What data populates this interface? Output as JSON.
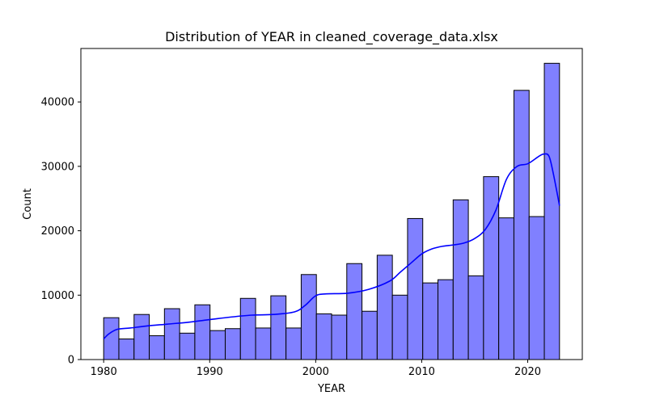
{
  "chart_data": {
    "type": "histogram",
    "title": "Distribution of YEAR in cleaned_coverage_data.xlsx",
    "xlabel": "YEAR",
    "ylabel": "Count",
    "xlim": [
      1977.85,
      2025.15
    ],
    "ylim": [
      0,
      48300
    ],
    "x_ticks": [
      1980,
      1990,
      2000,
      2010,
      2020
    ],
    "x_tick_labels": [
      "1980",
      "1990",
      "2000",
      "2010",
      "2020"
    ],
    "y_ticks": [
      0,
      10000,
      20000,
      30000,
      40000
    ],
    "y_tick_labels": [
      "0",
      "10000",
      "20000",
      "30000",
      "40000"
    ],
    "bar_color": "#8080FF",
    "bar_edge_color": "#000000",
    "kde_color": "#0000FF",
    "bins": [
      {
        "start": 1980.0,
        "end": 1981.433,
        "count": 6500
      },
      {
        "start": 1981.433,
        "end": 1982.867,
        "count": 3200
      },
      {
        "start": 1982.867,
        "end": 1984.3,
        "count": 7000
      },
      {
        "start": 1984.3,
        "end": 1985.733,
        "count": 3700
      },
      {
        "start": 1985.733,
        "end": 1987.167,
        "count": 7900
      },
      {
        "start": 1987.167,
        "end": 1988.6,
        "count": 4100
      },
      {
        "start": 1988.6,
        "end": 1990.033,
        "count": 8500
      },
      {
        "start": 1990.033,
        "end": 1991.467,
        "count": 4500
      },
      {
        "start": 1991.467,
        "end": 1992.9,
        "count": 4800
      },
      {
        "start": 1992.9,
        "end": 1994.333,
        "count": 9500
      },
      {
        "start": 1994.333,
        "end": 1995.767,
        "count": 4900
      },
      {
        "start": 1995.767,
        "end": 1997.2,
        "count": 9900
      },
      {
        "start": 1997.2,
        "end": 1998.633,
        "count": 4900
      },
      {
        "start": 1998.633,
        "end": 2000.067,
        "count": 13200
      },
      {
        "start": 2000.067,
        "end": 2001.5,
        "count": 7100
      },
      {
        "start": 2001.5,
        "end": 2002.933,
        "count": 6900
      },
      {
        "start": 2002.933,
        "end": 2004.367,
        "count": 14900
      },
      {
        "start": 2004.367,
        "end": 2005.8,
        "count": 7500
      },
      {
        "start": 2005.8,
        "end": 2007.233,
        "count": 16200
      },
      {
        "start": 2007.233,
        "end": 2008.667,
        "count": 10000
      },
      {
        "start": 2008.667,
        "end": 2010.1,
        "count": 21900
      },
      {
        "start": 2010.1,
        "end": 2011.533,
        "count": 11900
      },
      {
        "start": 2011.533,
        "end": 2012.967,
        "count": 12400
      },
      {
        "start": 2012.967,
        "end": 2014.4,
        "count": 24800
      },
      {
        "start": 2014.4,
        "end": 2015.833,
        "count": 13000
      },
      {
        "start": 2015.833,
        "end": 2017.267,
        "count": 28400
      },
      {
        "start": 2017.267,
        "end": 2018.7,
        "count": 22000
      },
      {
        "start": 2018.7,
        "end": 2020.133,
        "count": 41800
      },
      {
        "start": 2020.133,
        "end": 2021.567,
        "count": 22200
      },
      {
        "start": 2021.567,
        "end": 2023.0,
        "count": 46000
      }
    ],
    "kde": {
      "x": [
        1980.0,
        1980.5,
        1981.3,
        1982.5,
        1984,
        1986,
        1988,
        1990,
        1992,
        1994,
        1996,
        1998,
        1999,
        2000,
        2001,
        2003,
        2005,
        2007,
        2008,
        2009,
        2010,
        2011,
        2012,
        2013,
        2014,
        2015,
        2016,
        2017,
        2018,
        2019,
        2020,
        2021,
        2021.5,
        2022,
        2022.4,
        2023.0
      ],
      "y": [
        3200,
        4000,
        4700,
        4900,
        5200,
        5500,
        5800,
        6200,
        6600,
        6900,
        7000,
        7400,
        8400,
        9900,
        10200,
        10300,
        10900,
        12200,
        13600,
        15000,
        16400,
        17200,
        17600,
        17800,
        18100,
        18800,
        20200,
        23200,
        28000,
        30000,
        30400,
        31500,
        31900,
        31600,
        29000,
        23900
      ]
    }
  }
}
